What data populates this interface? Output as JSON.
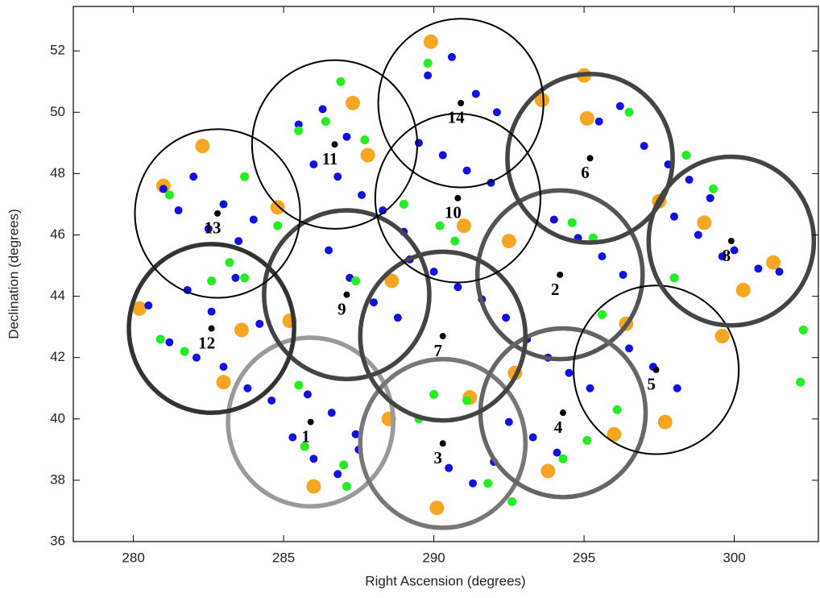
{
  "chart_data": {
    "type": "scatter",
    "xlabel": "Right Ascension (degrees)",
    "ylabel": "Declination (degrees)",
    "xlim": [
      278,
      302.8
    ],
    "ylim": [
      36,
      53.45
    ],
    "xticks": [
      280,
      285,
      290,
      295,
      300
    ],
    "yticks": [
      36,
      38,
      40,
      42,
      44,
      46,
      48,
      50,
      52
    ],
    "series": [
      {
        "color": "#f5a623",
        "x": [
          280.2,
          281.0,
          282.3,
          283.6,
          284.8,
          286.0,
          287.3,
          288.6,
          289.9,
          291.2,
          292.5,
          293.8,
          295.1,
          296.4,
          297.7,
          299.0,
          300.3,
          301.3,
          283.0,
          285.2,
          287.8,
          290.1,
          292.7,
          295.0,
          297.5,
          299.6,
          288.5,
          291.0,
          293.6,
          296.0
        ],
        "values": [
          43.6,
          47.6,
          48.9,
          42.9,
          46.9,
          37.8,
          50.3,
          44.5,
          52.3,
          40.7,
          45.8,
          38.3,
          49.8,
          43.1,
          39.9,
          46.4,
          44.2,
          45.1,
          41.2,
          43.2,
          48.6,
          37.1,
          41.5,
          51.2,
          47.1,
          42.7,
          40.0,
          46.3,
          50.4,
          39.5
        ]
      },
      {
        "color": "#1010e0",
        "x": [
          281,
          281.5,
          282,
          282.5,
          283,
          283.5,
          284,
          281.8,
          282.6,
          283.4,
          284.2,
          280.5,
          281.2,
          282.1,
          283.0,
          283.8,
          284.6,
          285.3,
          286.0,
          286.8,
          287.5,
          285.5,
          286.3,
          287.1,
          286.0,
          286.8,
          287.6,
          288.3,
          289.0,
          289.8,
          290.6,
          291.4,
          292.1,
          289.5,
          290.3,
          291.1,
          291.9,
          289.2,
          290.0,
          290.8,
          291.6,
          292.4,
          293.1,
          293.8,
          294.5,
          295.2,
          294.0,
          294.8,
          295.6,
          296.3,
          295.5,
          296.2,
          297.0,
          297.8,
          298.5,
          299.2,
          300.0,
          300.8,
          301.5,
          298.0,
          298.8,
          299.6,
          296.5,
          297.3,
          298.1,
          292.5,
          293.3,
          294.1,
          286.5,
          287.2,
          288.0,
          288.8,
          290.5,
          291.3,
          292.0,
          285.8,
          286.6,
          287.4
        ],
        "values": [
          47.5,
          46.8,
          47.9,
          46.2,
          47.0,
          45.8,
          46.5,
          44.2,
          43.5,
          44.6,
          43.1,
          43.7,
          42.5,
          42.0,
          41.7,
          41.0,
          40.6,
          39.4,
          38.7,
          38.2,
          39.0,
          49.6,
          50.1,
          49.2,
          48.3,
          47.9,
          47.3,
          46.8,
          46.1,
          51.2,
          51.8,
          50.6,
          50.0,
          49.0,
          48.6,
          48.1,
          47.7,
          45.2,
          44.8,
          44.3,
          43.9,
          43.3,
          42.6,
          42.0,
          41.5,
          41.0,
          46.5,
          45.9,
          45.3,
          44.7,
          49.7,
          50.2,
          48.9,
          48.3,
          47.8,
          47.2,
          45.5,
          44.9,
          44.8,
          46.6,
          46.0,
          45.3,
          42.3,
          41.7,
          41.0,
          39.9,
          39.4,
          38.9,
          45.5,
          44.6,
          43.8,
          43.3,
          38.4,
          37.9,
          38.6,
          40.8,
          40.2,
          39.5
        ]
      },
      {
        "color": "#22ee22",
        "x": [
          302.3,
          302.2,
          286.9,
          289.8,
          285.5,
          286.4,
          287.7,
          281.2,
          283.7,
          284.8,
          283.2,
          283.7,
          282.6,
          280.9,
          281.7,
          285.5,
          285.7,
          287.0,
          287.1,
          289.0,
          290.2,
          290.7,
          295.3,
          294.6,
          296.5,
          298.4,
          299.3,
          298.0,
          295.6,
          296.1,
          295.1,
          294.3,
          291.8,
          292.6,
          289.5,
          290.0,
          291.1,
          287.4
        ],
        "values": [
          42.9,
          41.2,
          51.0,
          51.6,
          49.4,
          49.7,
          49.1,
          47.3,
          47.9,
          46.3,
          45.1,
          44.6,
          44.5,
          42.6,
          42.2,
          41.1,
          39.1,
          38.5,
          37.8,
          47.0,
          46.3,
          45.8,
          45.9,
          46.4,
          50.0,
          48.6,
          47.5,
          44.6,
          43.4,
          40.3,
          39.3,
          38.7,
          37.9,
          37.3,
          40.0,
          40.8,
          40.6,
          44.5
        ]
      }
    ],
    "fields": {
      "labels": [
        "1",
        "2",
        "3",
        "4",
        "5",
        "6",
        "7",
        "8",
        "9",
        "10",
        "11",
        "12",
        "13",
        "14"
      ],
      "x": [
        285.9,
        294.2,
        290.3,
        294.3,
        297.4,
        295.2,
        290.3,
        299.9,
        287.1,
        290.8,
        286.7,
        282.6,
        282.8,
        290.9
      ],
      "y": [
        39.9,
        44.7,
        39.2,
        40.2,
        41.6,
        48.5,
        42.7,
        45.8,
        44.05,
        47.2,
        48.95,
        42.95,
        46.7,
        50.3
      ],
      "radius": [
        2.75,
        2.75,
        2.75,
        2.75,
        2.75,
        2.75,
        2.75,
        2.75,
        2.75,
        2.75,
        2.75,
        2.75,
        2.75,
        2.75
      ],
      "colors": [
        "#999999",
        "#555555",
        "#777777",
        "#666666",
        "#000000",
        "#444444",
        "#444444",
        "#444444",
        "#444444",
        "#000000",
        "#000000",
        "#333333",
        "#000000",
        "#000000"
      ]
    }
  }
}
